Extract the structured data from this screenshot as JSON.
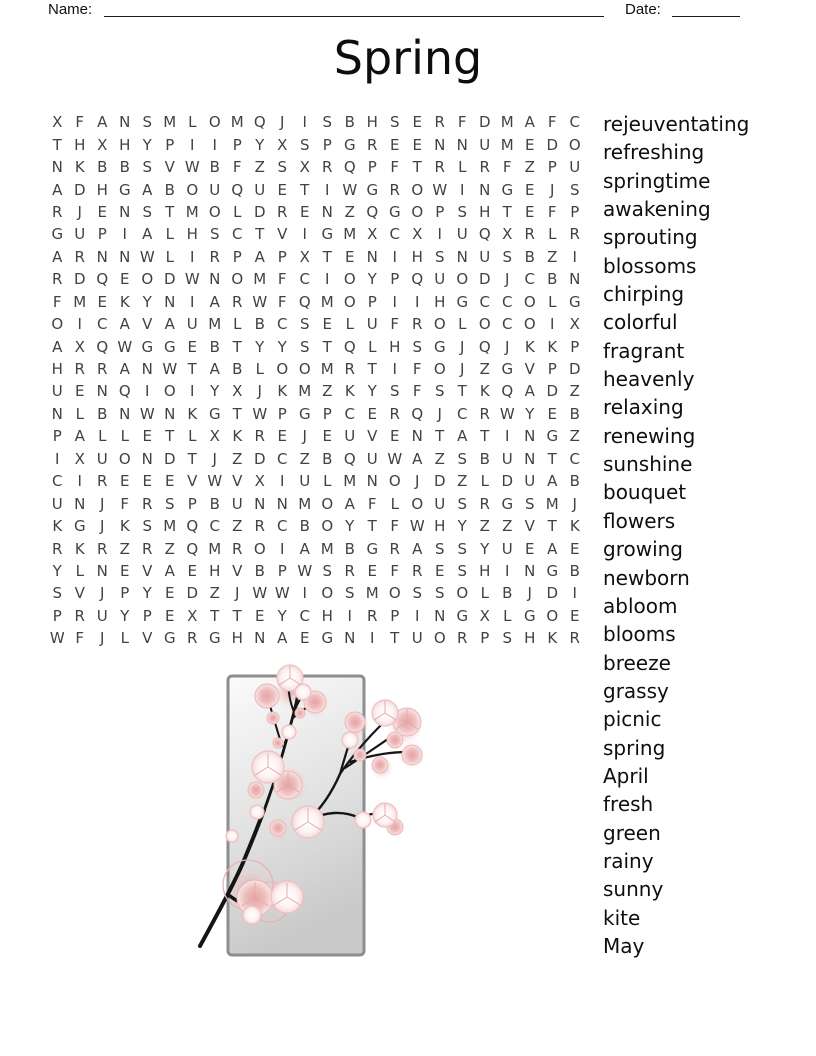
{
  "header": {
    "name_label": "Name:",
    "date_label": "Date:"
  },
  "title": "Spring",
  "puzzle": {
    "rows": 24,
    "cols": 24,
    "grid": [
      "XFANSMLOMQJISBHSERFDMAFC",
      "THXHYPIIPYXSPGREENNUMEDO",
      "NKBBSVWBFZSXRQPFTRLRFZPU",
      "ADHGABOUQUETIWGROWINGEJS",
      "RJENSTMOLDRENZQGOPSHTEFP",
      "GUPIALHSCTVIGMXCXIUQXRLR",
      "ARNNWLIRPAPXTENIHSNUSBZI",
      "RDQEODWNOMFCIOYPQUODJCBN",
      "FMEKYNIARWFQMOPIIHGCCOLG",
      "OICAVAUMLBCSELUFROLOCOIX",
      "AXQWGGEBTYYSTQLHSGJQJKKP",
      "HRRANWTABLOOMRTIFOJZGVPD",
      "UENQIOIYXJKMZKYSFSTKQADZ",
      "NLBNWNKGTWPGPCERQJCRWYEB",
      "PALLETLXKREJEUVENTATINGZ",
      "IXUONDTJZDCZBQUWAZSBUNTC",
      "CIREEEVWVXIULMNOJDZLDUAB",
      "UNJFRSPBUNNMOAFLOUSRGSMJ",
      "KGJKSMQCZRCBOYTFWHYZZVTK",
      "RKRZRZQMROIAMBGRASSYUEAE",
      "YLNEVAEHVBPWSREFRESHINGB",
      "SVJPYEDZJWWIOSMOSSOLBJDI",
      "PRUYPEXTTEYCHIRPINGXLGOE",
      "WFJLVGRGHNAEGNITUORPSHKR"
    ]
  },
  "word_list": [
    "rejeuventating",
    "refreshing",
    "springtime",
    "awakening",
    "sprouting",
    "blossoms",
    "chirping",
    "colorful",
    "fragrant",
    "heavenly",
    "relaxing",
    "renewing",
    "sunshine",
    "bouquet",
    "flowers",
    "growing",
    "newborn",
    "abloom",
    "blooms",
    "breeze",
    "grassy",
    "picnic",
    "spring",
    "April",
    "fresh",
    "green",
    "rainy",
    "sunny",
    "kite",
    "May"
  ],
  "illustration": {
    "subject": "cherry-blossom-branch",
    "frame_border_color": "#8e8e8e",
    "frame_fill_top": "#fbfbfb",
    "frame_fill_bottom": "#c9c9c9",
    "branch_color": "#151515",
    "blossom_pink": "#e5a3a3",
    "blossom_outline": "#ecb5b5"
  }
}
